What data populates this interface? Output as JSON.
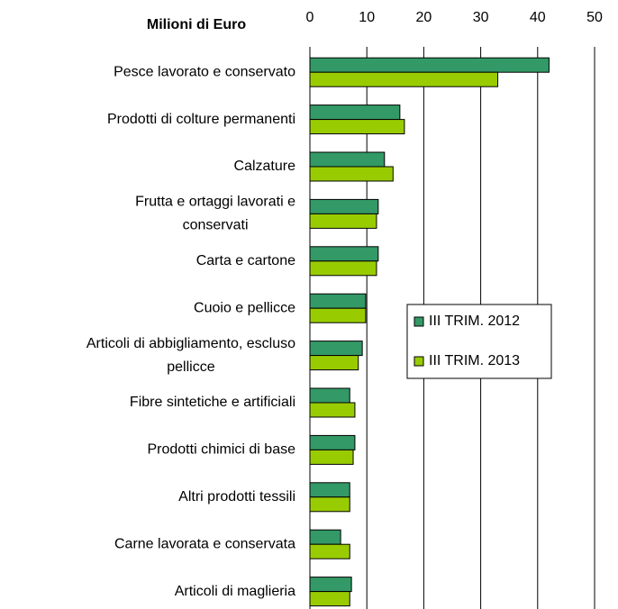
{
  "chart_data": {
    "type": "bar",
    "orientation": "horizontal",
    "title": "Milioni di Euro",
    "categories": [
      "Pesce lavorato e conservato",
      "Prodotti di colture permanenti",
      "Calzature",
      [
        "Frutta e ortaggi lavorati e",
        "conservati"
      ],
      "Carta e cartone",
      "Cuoio e pellicce",
      [
        "Articoli di abbigliamento, escluso",
        "pellicce"
      ],
      "Fibre sintetiche e artificiali",
      "Prodotti chimici di base",
      "Altri prodotti tessili",
      "Carne lavorata e conservata",
      "Articoli di maglieria"
    ],
    "series": [
      {
        "name": "III TRIM. 2012",
        "color": "#339966",
        "values": [
          42,
          15.8,
          13.1,
          12,
          12,
          9.8,
          9.2,
          7,
          7.9,
          7,
          5.4,
          7.3
        ]
      },
      {
        "name": "III TRIM. 2013",
        "color": "#99cc00",
        "values": [
          33,
          16.6,
          14.6,
          11.7,
          11.7,
          9.8,
          8.5,
          7.9,
          7.6,
          7,
          7,
          7
        ]
      }
    ],
    "xlim": [
      0,
      50
    ],
    "xticks": [
      0,
      10,
      20,
      30,
      40,
      50
    ],
    "grid": true,
    "legend": "right"
  }
}
